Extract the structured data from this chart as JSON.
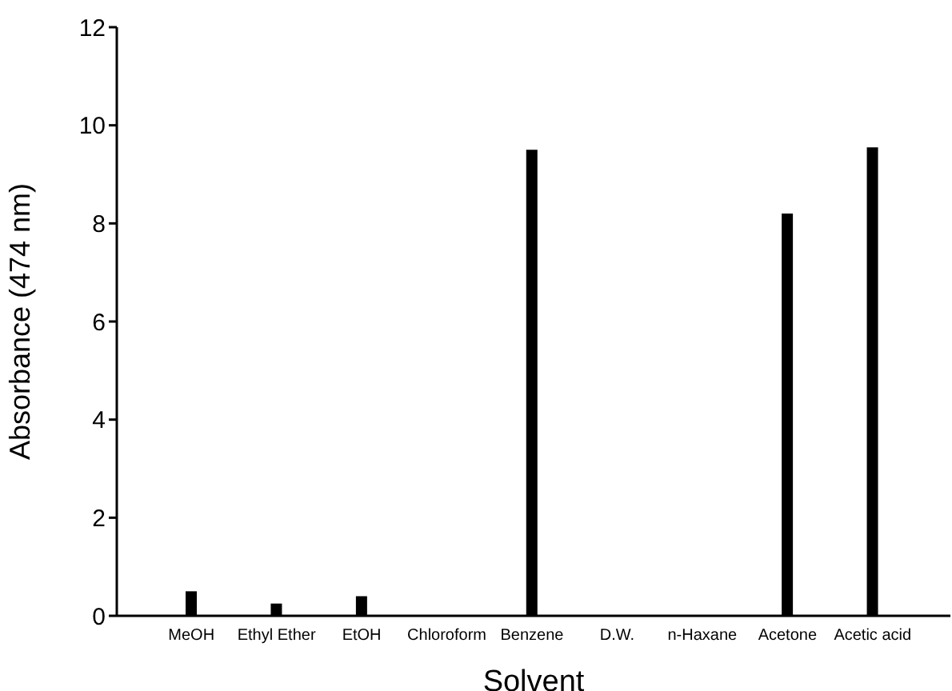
{
  "chart_data": {
    "type": "bar",
    "xlabel": "Solvent",
    "ylabel": "Absorbance (474 nm)",
    "categories": [
      "MeOH",
      "Ethyl  Ether",
      "EtOH",
      "Chloroform",
      "Benzene",
      "D.W.",
      "n-Haxane",
      "Acetone",
      "Acetic  acid"
    ],
    "values": [
      0.5,
      0.25,
      0.4,
      0,
      9.5,
      0,
      0,
      8.2,
      9.55
    ],
    "color": "#000000",
    "ylim": [
      0,
      12
    ],
    "yticks": [
      0,
      2,
      4,
      6,
      8,
      10,
      12
    ]
  }
}
